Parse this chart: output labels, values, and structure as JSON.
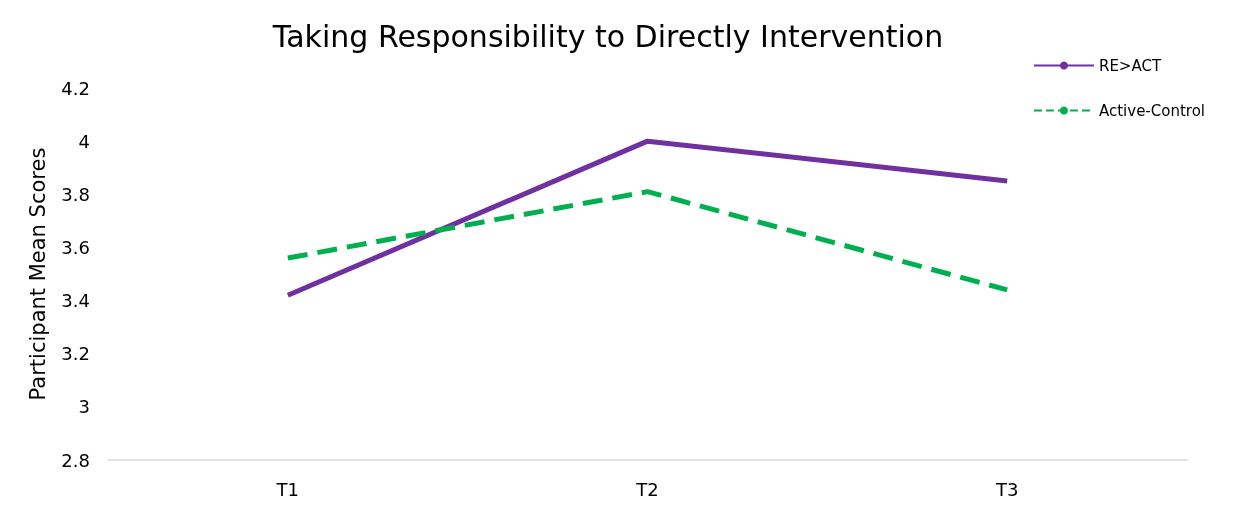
{
  "chart_data": {
    "type": "line",
    "title": "Taking Responsibility to Directly Intervention",
    "ylabel": "Participant Mean Scores",
    "categories": [
      "T1",
      "T2",
      "T3"
    ],
    "series": [
      {
        "name": "RE>ACT",
        "color": "#7030a0",
        "line_style": "solid",
        "values": [
          3.42,
          4.0,
          3.85
        ]
      },
      {
        "name": "Active-Control",
        "color": "#00b050",
        "line_style": "dashed",
        "values": [
          3.56,
          3.81,
          3.44
        ]
      }
    ],
    "ylim": [
      2.8,
      4.2
    ],
    "yticks": [
      2.8,
      3,
      3.2,
      3.4,
      3.6,
      3.8,
      4,
      4.2
    ],
    "grid": false,
    "legend": "top right",
    "marker": "none"
  }
}
